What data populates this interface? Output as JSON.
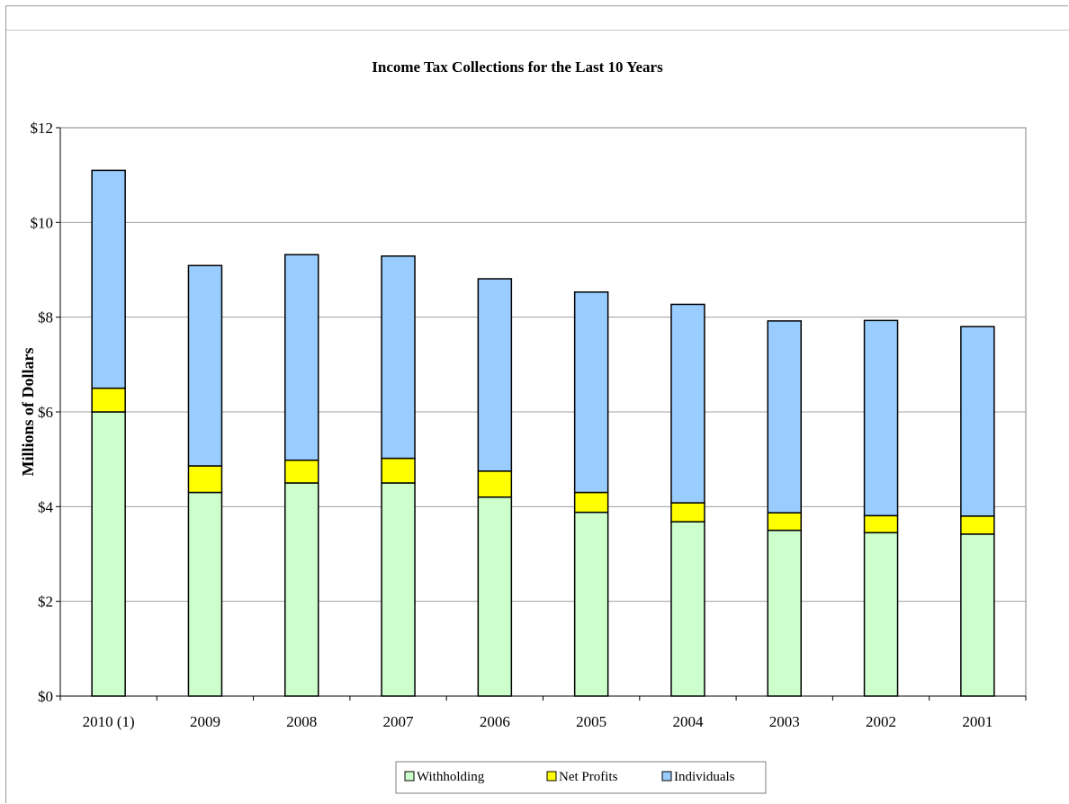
{
  "chart_data": {
    "type": "bar",
    "stacked": true,
    "title": "Income Tax Collections for the Last 10 Years",
    "ylabel": "Millions of Dollars",
    "xlabel": "",
    "categories": [
      "2010 (1)",
      "2009",
      "2008",
      "2007",
      "2006",
      "2005",
      "2004",
      "2003",
      "2002",
      "2001"
    ],
    "series": [
      {
        "name": "Withholding",
        "color": "#ccffcc",
        "values": [
          6.0,
          4.3,
          4.5,
          4.5,
          4.2,
          3.88,
          3.68,
          3.5,
          3.45,
          3.42
        ]
      },
      {
        "name": "Net Profits",
        "color": "#ffff00",
        "values": [
          0.5,
          0.56,
          0.48,
          0.52,
          0.55,
          0.42,
          0.4,
          0.37,
          0.36,
          0.38
        ]
      },
      {
        "name": "Individuals",
        "color": "#99ccff",
        "values": [
          4.6,
          4.23,
          4.34,
          4.27,
          4.06,
          4.23,
          4.19,
          4.05,
          4.12,
          4.0
        ]
      }
    ],
    "ylim": [
      0,
      12
    ],
    "yticks": [
      0,
      2,
      4,
      6,
      8,
      10,
      12
    ],
    "ytick_labels": [
      "$0",
      "$2",
      "$4",
      "$6",
      "$8",
      "$10",
      "$12"
    ],
    "grid": true,
    "legend_position": "bottom"
  }
}
